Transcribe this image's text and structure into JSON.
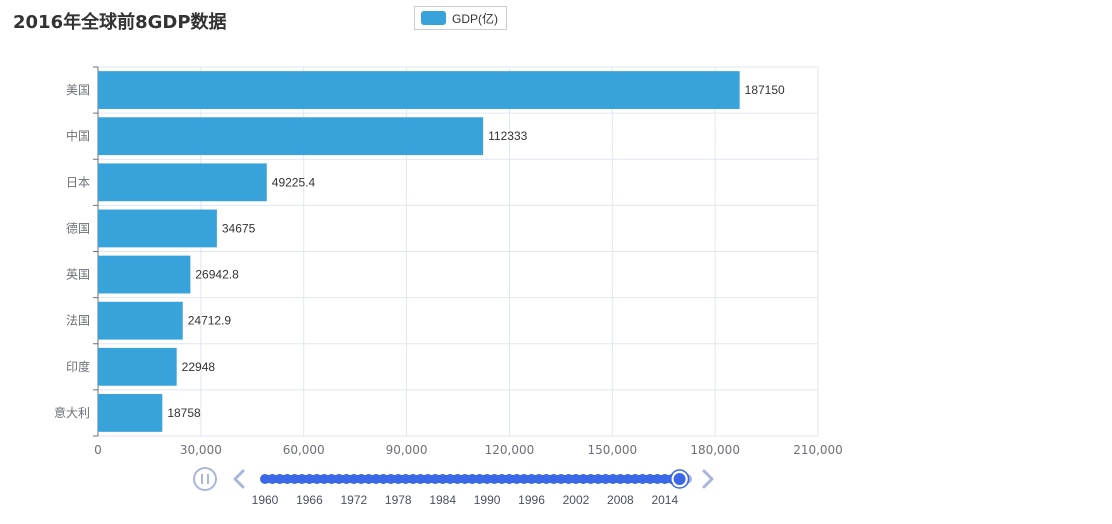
{
  "chart_data": {
    "type": "bar",
    "orientation": "horizontal",
    "title": "2016年全球前8GDP数据",
    "categories": [
      "美国",
      "中国",
      "日本",
      "德国",
      "英国",
      "法国",
      "印度",
      "意大利"
    ],
    "series": [
      {
        "name": "GDP(亿)",
        "values": [
          187150,
          112333,
          49225.4,
          34675,
          26942.8,
          24712.9,
          22948,
          18758
        ],
        "value_labels": [
          "187150",
          "112333",
          "49225.4",
          "34675",
          "26942.8",
          "24712.9",
          "22948",
          "18758"
        ]
      }
    ],
    "xlim": [
      0,
      210000
    ],
    "x_ticks": [
      0,
      30000,
      60000,
      90000,
      120000,
      150000,
      180000,
      210000
    ],
    "x_tick_labels": [
      "0",
      "30,000",
      "60,000",
      "90,000",
      "120,000",
      "150,000",
      "180,000",
      "210,000"
    ],
    "grid": true,
    "legend_position": "top-center",
    "bar_color": "#38a3db"
  },
  "timeline": {
    "start_year": 1960,
    "end_year": 2017,
    "current_year": 2016,
    "labels": [
      "1960",
      "1966",
      "1972",
      "1978",
      "1984",
      "1990",
      "1996",
      "2002",
      "2008",
      "2014"
    ],
    "active_color": "#3b68e6",
    "inactive_color": "#a9b6d9",
    "control_color": "#a9b6d9"
  }
}
